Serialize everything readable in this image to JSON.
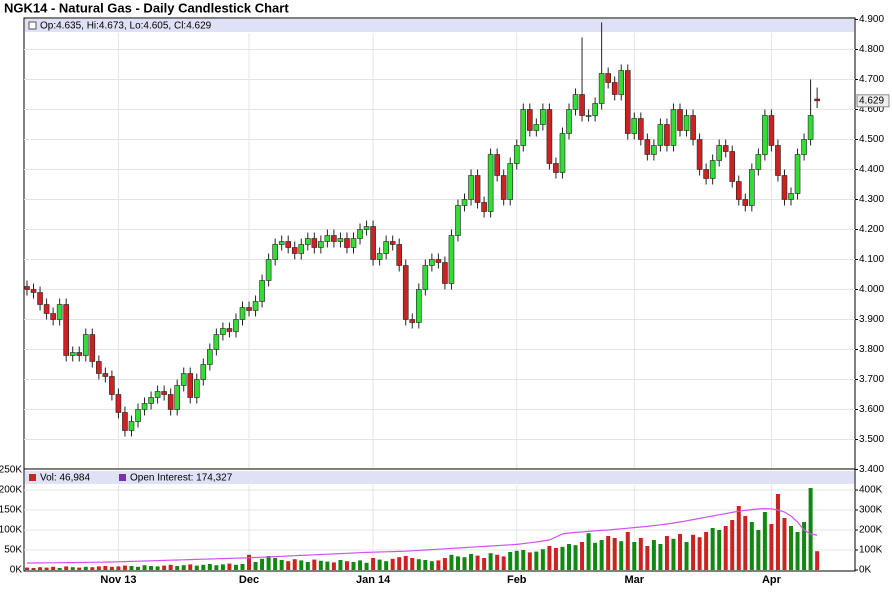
{
  "chart_data": [
    {
      "type": "candlestick",
      "title": "NGK14 - Natural Gas - Daily Candlestick Chart",
      "info": "Op:4.635, Hi:4.673, Lo:4.605, Cl:4.629",
      "up_color": "#33dd33",
      "down_color": "#cc2222",
      "open": [
        4.01,
        4.0,
        3.99,
        3.95,
        3.92,
        3.9,
        3.95,
        3.78,
        3.79,
        3.78,
        3.85,
        3.76,
        3.72,
        3.71,
        3.65,
        3.59,
        3.53,
        3.56,
        3.6,
        3.62,
        3.64,
        3.66,
        3.65,
        3.6,
        3.68,
        3.72,
        3.64,
        3.7,
        3.75,
        3.8,
        3.85,
        3.87,
        3.86,
        3.9,
        3.94,
        3.93,
        3.96,
        4.03,
        4.1,
        4.15,
        4.16,
        4.14,
        4.12,
        4.15,
        4.17,
        4.14,
        4.16,
        4.18,
        4.16,
        4.17,
        4.14,
        4.17,
        4.2,
        4.21,
        4.1,
        4.12,
        4.16,
        4.15,
        4.08,
        3.9,
        3.89,
        4.0,
        4.08,
        4.1,
        4.09,
        4.02,
        4.18,
        4.28,
        4.3,
        4.38,
        4.29,
        4.26,
        4.45,
        4.38,
        4.3,
        4.42,
        4.48,
        4.6,
        4.53,
        4.55,
        4.6,
        4.42,
        4.39,
        4.52,
        4.6,
        4.65,
        4.58,
        4.58,
        4.62,
        4.72,
        4.69,
        4.65,
        4.73,
        4.52,
        4.57,
        4.5,
        4.45,
        4.48,
        4.55,
        4.48,
        4.6,
        4.53,
        4.58,
        4.5,
        4.4,
        4.37,
        4.43,
        4.48,
        4.46,
        4.36,
        4.3,
        4.28,
        4.4,
        4.45,
        4.58,
        4.48,
        4.38,
        4.3,
        4.32,
        4.45,
        4.5,
        4.635
      ],
      "high": [
        4.03,
        4.02,
        4.01,
        3.97,
        3.94,
        3.97,
        3.97,
        3.81,
        3.81,
        3.87,
        3.87,
        3.78,
        3.74,
        3.73,
        3.67,
        3.61,
        3.58,
        3.62,
        3.64,
        3.66,
        3.68,
        3.68,
        3.67,
        3.7,
        3.74,
        3.74,
        3.72,
        3.77,
        3.82,
        3.87,
        3.89,
        3.89,
        3.92,
        3.96,
        3.96,
        3.98,
        4.05,
        4.12,
        4.17,
        4.18,
        4.18,
        4.16,
        4.17,
        4.19,
        4.19,
        4.18,
        4.2,
        4.2,
        4.19,
        4.19,
        4.19,
        4.22,
        4.23,
        4.23,
        4.14,
        4.18,
        4.18,
        4.17,
        4.1,
        3.92,
        4.02,
        4.1,
        4.12,
        4.12,
        4.11,
        4.2,
        4.3,
        4.32,
        4.4,
        4.4,
        4.31,
        4.47,
        4.47,
        4.4,
        4.44,
        4.5,
        4.62,
        4.62,
        4.57,
        4.62,
        4.62,
        4.44,
        4.54,
        4.62,
        4.67,
        4.84,
        4.6,
        4.64,
        4.89,
        4.74,
        4.71,
        4.75,
        4.75,
        4.59,
        4.59,
        4.52,
        4.5,
        4.57,
        4.57,
        4.62,
        4.62,
        4.6,
        4.6,
        4.52,
        4.42,
        4.45,
        4.5,
        4.5,
        4.48,
        4.38,
        4.32,
        4.42,
        4.47,
        4.6,
        4.6,
        4.5,
        4.4,
        4.34,
        4.47,
        4.52,
        4.7,
        4.673
      ],
      "low": [
        3.98,
        3.97,
        3.93,
        3.9,
        3.88,
        3.88,
        3.76,
        3.76,
        3.76,
        3.76,
        3.74,
        3.7,
        3.69,
        3.63,
        3.57,
        3.51,
        3.51,
        3.54,
        3.58,
        3.6,
        3.62,
        3.63,
        3.58,
        3.58,
        3.66,
        3.62,
        3.62,
        3.68,
        3.73,
        3.78,
        3.83,
        3.84,
        3.84,
        3.88,
        3.91,
        3.91,
        3.94,
        4.01,
        4.08,
        4.13,
        4.12,
        4.1,
        4.1,
        4.13,
        4.12,
        4.12,
        4.14,
        4.14,
        4.14,
        4.12,
        4.12,
        4.15,
        4.18,
        4.08,
        4.08,
        4.1,
        4.13,
        4.06,
        3.88,
        3.87,
        3.87,
        3.98,
        4.06,
        4.07,
        4.0,
        4.0,
        4.16,
        4.26,
        4.28,
        4.27,
        4.24,
        4.24,
        4.36,
        4.28,
        4.28,
        4.4,
        4.46,
        4.51,
        4.51,
        4.53,
        4.4,
        4.37,
        4.37,
        4.5,
        4.58,
        4.56,
        4.56,
        4.56,
        4.6,
        4.67,
        4.63,
        4.63,
        4.5,
        4.5,
        4.48,
        4.43,
        4.43,
        4.46,
        4.46,
        4.46,
        4.51,
        4.51,
        4.48,
        4.38,
        4.35,
        4.35,
        4.41,
        4.44,
        4.34,
        4.28,
        4.26,
        4.26,
        4.38,
        4.43,
        4.46,
        4.36,
        4.28,
        4.28,
        4.3,
        4.43,
        4.48,
        4.605
      ],
      "close": [
        4.0,
        3.99,
        3.95,
        3.92,
        3.9,
        3.95,
        3.78,
        3.79,
        3.78,
        3.85,
        3.76,
        3.72,
        3.71,
        3.65,
        3.59,
        3.53,
        3.56,
        3.6,
        3.62,
        3.64,
        3.66,
        3.65,
        3.6,
        3.68,
        3.72,
        3.64,
        3.7,
        3.75,
        3.8,
        3.85,
        3.87,
        3.86,
        3.9,
        3.94,
        3.93,
        3.96,
        4.03,
        4.1,
        4.15,
        4.16,
        4.14,
        4.12,
        4.15,
        4.17,
        4.14,
        4.16,
        4.18,
        4.16,
        4.17,
        4.14,
        4.17,
        4.2,
        4.21,
        4.1,
        4.12,
        4.16,
        4.15,
        4.08,
        3.9,
        3.89,
        4.0,
        4.08,
        4.1,
        4.09,
        4.02,
        4.18,
        4.28,
        4.3,
        4.38,
        4.29,
        4.26,
        4.45,
        4.38,
        4.3,
        4.42,
        4.48,
        4.6,
        4.53,
        4.55,
        4.6,
        4.42,
        4.39,
        4.52,
        4.6,
        4.65,
        4.58,
        4.58,
        4.62,
        4.72,
        4.69,
        4.65,
        4.73,
        4.52,
        4.57,
        4.5,
        4.45,
        4.48,
        4.55,
        4.48,
        4.6,
        4.53,
        4.58,
        4.5,
        4.4,
        4.37,
        4.43,
        4.48,
        4.46,
        4.36,
        4.3,
        4.28,
        4.4,
        4.45,
        4.58,
        4.48,
        4.38,
        4.3,
        4.32,
        4.45,
        4.5,
        4.58,
        4.629
      ],
      "ylim": [
        3.4,
        4.9
      ],
      "yticks": [
        {
          "value": 3.4,
          "label": "3.400"
        },
        {
          "value": 3.5,
          "label": "3.500"
        },
        {
          "value": 3.6,
          "label": "3.600"
        },
        {
          "value": 3.7,
          "label": "3.700"
        },
        {
          "value": 3.8,
          "label": "3.800"
        },
        {
          "value": 3.9,
          "label": "3.900"
        },
        {
          "value": 4.0,
          "label": "4.000"
        },
        {
          "value": 4.1,
          "label": "4.100"
        },
        {
          "value": 4.2,
          "label": "4.200"
        },
        {
          "value": 4.3,
          "label": "4.300"
        },
        {
          "value": 4.4,
          "label": "4.400"
        },
        {
          "value": 4.5,
          "label": "4.500"
        },
        {
          "value": 4.6,
          "label": "4.600"
        },
        {
          "value": 4.7,
          "label": "4.700"
        },
        {
          "value": 4.8,
          "label": "4.800"
        },
        {
          "value": 4.9,
          "label": "4.900"
        }
      ],
      "grid": true
    },
    {
      "type": "bar",
      "categories": [
        null,
        null,
        null,
        null,
        null,
        null,
        null,
        null,
        null,
        null,
        null,
        null,
        null,
        null,
        "Nov 13",
        null,
        null,
        null,
        null,
        null,
        null,
        null,
        null,
        null,
        null,
        null,
        null,
        null,
        null,
        null,
        null,
        null,
        null,
        null,
        "Dec",
        null,
        null,
        null,
        null,
        null,
        null,
        null,
        null,
        null,
        null,
        null,
        null,
        null,
        null,
        null,
        null,
        null,
        null,
        "Jan 14",
        null,
        null,
        null,
        null,
        null,
        null,
        null,
        null,
        null,
        null,
        null,
        null,
        null,
        null,
        null,
        null,
        null,
        null,
        null,
        null,
        null,
        "Feb",
        null,
        null,
        null,
        null,
        null,
        null,
        null,
        null,
        null,
        null,
        null,
        null,
        null,
        null,
        null,
        null,
        null,
        "Mar",
        null,
        null,
        null,
        null,
        null,
        null,
        null,
        null,
        null,
        null,
        null,
        null,
        null,
        null,
        null,
        null,
        null,
        null,
        null,
        null,
        "Apr",
        null,
        null,
        null,
        null,
        null,
        null,
        null
      ],
      "series": [
        {
          "name": "Vol: 46,984",
          "color": "#cc2222",
          "values": [
            6000,
            5000,
            7000,
            6000,
            8000,
            5000,
            9000,
            7000,
            6000,
            8000,
            7000,
            9000,
            10000,
            8000,
            9000,
            11000,
            10000,
            8000,
            12000,
            10000,
            9000,
            11000,
            13000,
            10000,
            12000,
            14000,
            11000,
            13000,
            15000,
            12000,
            14000,
            16000,
            13000,
            15000,
            38000,
            20000,
            28000,
            35000,
            30000,
            25000,
            22000,
            27000,
            24000,
            20000,
            26000,
            23000,
            21000,
            19000,
            25000,
            22000,
            20000,
            24000,
            18000,
            30000,
            26000,
            22000,
            28000,
            32000,
            35000,
            30000,
            27000,
            25000,
            22000,
            24000,
            30000,
            38000,
            34000,
            32000,
            40000,
            36000,
            30000,
            42000,
            38000,
            34000,
            45000,
            48000,
            50000,
            44000,
            46000,
            52000,
            60000,
            55000,
            58000,
            65000,
            62000,
            70000,
            92000,
            68000,
            75000,
            85000,
            80000,
            72000,
            95000,
            70000,
            80000,
            60000,
            75000,
            65000,
            85000,
            78000,
            90000,
            70000,
            88000,
            82000,
            95000,
            105000,
            100000,
            110000,
            125000,
            160000,
            135000,
            120000,
            100000,
            145000,
            115000,
            190000,
            130000,
            110000,
            95000,
            120000,
            205000,
            46984
          ]
        },
        {
          "name": "Open Interest: 174,327",
          "color": "#7a2fb5",
          "line_color": "#cc55ee",
          "axis": "y2",
          "values": [
            35000,
            35000,
            35500,
            36000,
            36000,
            36500,
            37000,
            37000,
            37500,
            38000,
            38500,
            39000,
            39500,
            40000,
            41000,
            42000,
            43000,
            44000,
            45000,
            46000,
            47000,
            48000,
            49000,
            50000,
            51000,
            52000,
            53000,
            54000,
            55000,
            56000,
            57000,
            58000,
            59000,
            60000,
            61000,
            62500,
            64000,
            65500,
            67000,
            68500,
            70000,
            71500,
            73000,
            74500,
            76000,
            77500,
            79000,
            80500,
            82000,
            83500,
            85000,
            86500,
            88000,
            89000,
            90000,
            91000,
            92000,
            93000,
            94000,
            96000,
            98000,
            100000,
            102000,
            104000,
            106000,
            108000,
            110000,
            112000,
            114000,
            116000,
            118000,
            120000,
            122000,
            124000,
            126000,
            128000,
            132000,
            136000,
            140000,
            145000,
            150000,
            165000,
            180000,
            185000,
            188000,
            190000,
            193000,
            196000,
            198000,
            200000,
            203000,
            206000,
            209000,
            212000,
            215000,
            218000,
            222000,
            226000,
            230000,
            235000,
            240000,
            246000,
            252000,
            258000,
            264000,
            270000,
            276000,
            282000,
            288000,
            294000,
            298000,
            302000,
            305000,
            307000,
            306000,
            300000,
            290000,
            270000,
            240000,
            200000,
            180000,
            174327
          ]
        }
      ],
      "ylim": [
        0,
        250000
      ],
      "yticks": [
        {
          "value": 0,
          "label": "0K"
        },
        {
          "value": 50000,
          "label": "50K"
        },
        {
          "value": 100000,
          "label": "100K"
        },
        {
          "value": 150000,
          "label": "150K"
        },
        {
          "value": 200000,
          "label": "200K"
        },
        {
          "value": 250000,
          "label": "250K"
        }
      ],
      "y2lim": [
        0,
        500000
      ],
      "y2ticks": [
        {
          "value": 0,
          "label": "0K"
        },
        {
          "value": 100000,
          "label": "100K"
        },
        {
          "value": 200000,
          "label": "200K"
        },
        {
          "value": 300000,
          "label": "300K"
        },
        {
          "value": 400000,
          "label": "400K"
        }
      ],
      "grid": true
    }
  ]
}
